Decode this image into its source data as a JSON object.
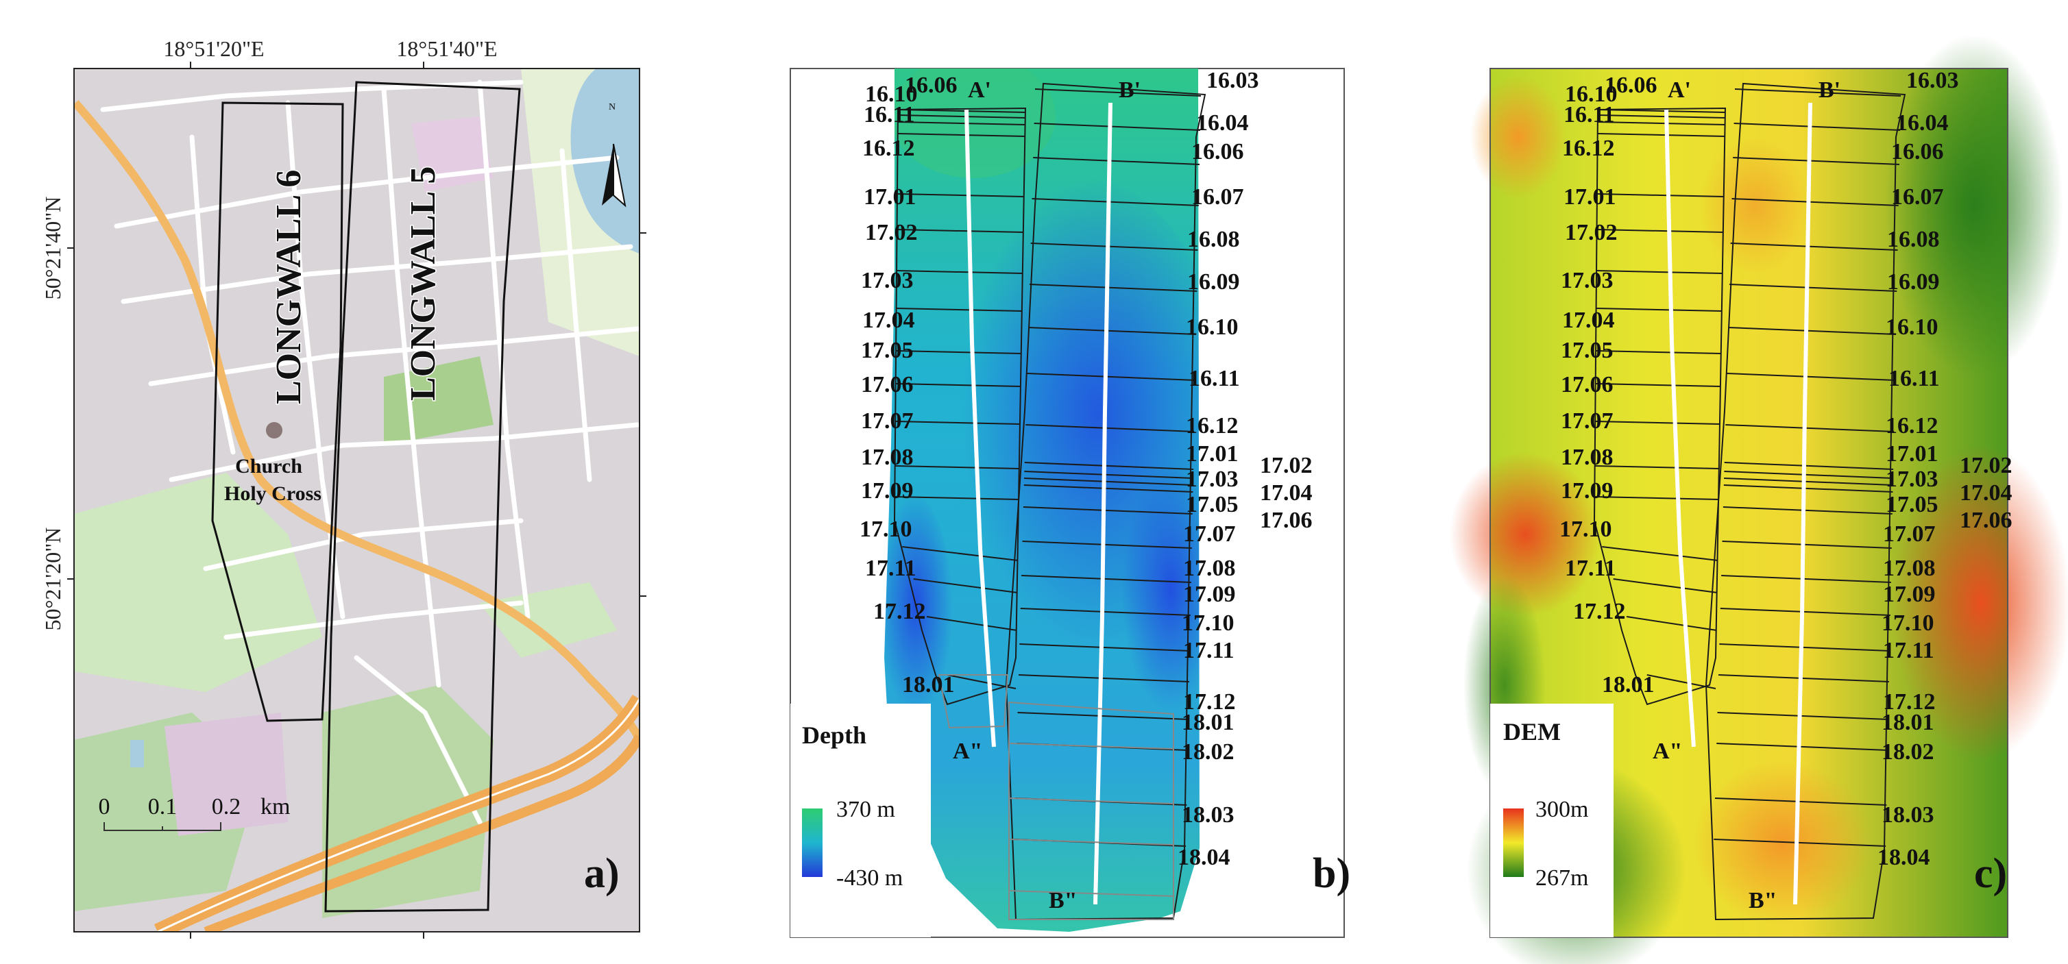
{
  "panel_a": {
    "lon_labels": [
      "18°51'20\"E",
      "18°51'40\"E"
    ],
    "lat_labels": [
      "50°21'40\"N",
      "50°21'20\"N"
    ],
    "longwall6": "LONGWALL 6",
    "longwall5": "LONGWALL 5",
    "church_line1": "Church",
    "church_line2": "Holy Cross",
    "north": "N",
    "scale_labels": [
      "0",
      "0.1",
      "0.2",
      "km"
    ],
    "panel_label": "a)"
  },
  "dates_lw6": [
    "16.06",
    "16.10",
    "16.11",
    "16.12",
    "17.01",
    "17.02",
    "17.03",
    "17.04",
    "17.05",
    "17.06",
    "17.07",
    "17.08",
    "17.09",
    "17.10",
    "17.11",
    "17.12",
    "18.01"
  ],
  "dates_lw5_top": [
    "16.03",
    "16.04",
    "16.06",
    "16.07",
    "16.08",
    "16.09",
    "16.10",
    "16.11",
    "16.12",
    "17.01"
  ],
  "dates_lw5_mid": [
    "17.03",
    "17.05",
    "17.07",
    "17.08",
    "17.09",
    "17.10",
    "17.11",
    "17.12",
    "18.01",
    "18.02",
    "18.03",
    "18.04"
  ],
  "dates_lw5_right": [
    "17.02",
    "17.04",
    "17.06"
  ],
  "profiles": {
    "a_start": "A'",
    "a_end": "A\"",
    "b_start": "B'",
    "b_end": "B\""
  },
  "panel_b": {
    "legend_title": "Depth",
    "legend_max": "370 m",
    "legend_min": "-430 m",
    "panel_label": "b)",
    "colors": {
      "max": "#2ecc71",
      "mid": "#1fb6cf",
      "min": "#2338d8"
    }
  },
  "panel_c": {
    "legend_title": "DEM",
    "legend_max": "300m",
    "legend_min": "267m",
    "panel_label": "c)",
    "colors": {
      "max": "#e8321e",
      "mid": "#f2ea2a",
      "min": "#207a1a"
    }
  }
}
